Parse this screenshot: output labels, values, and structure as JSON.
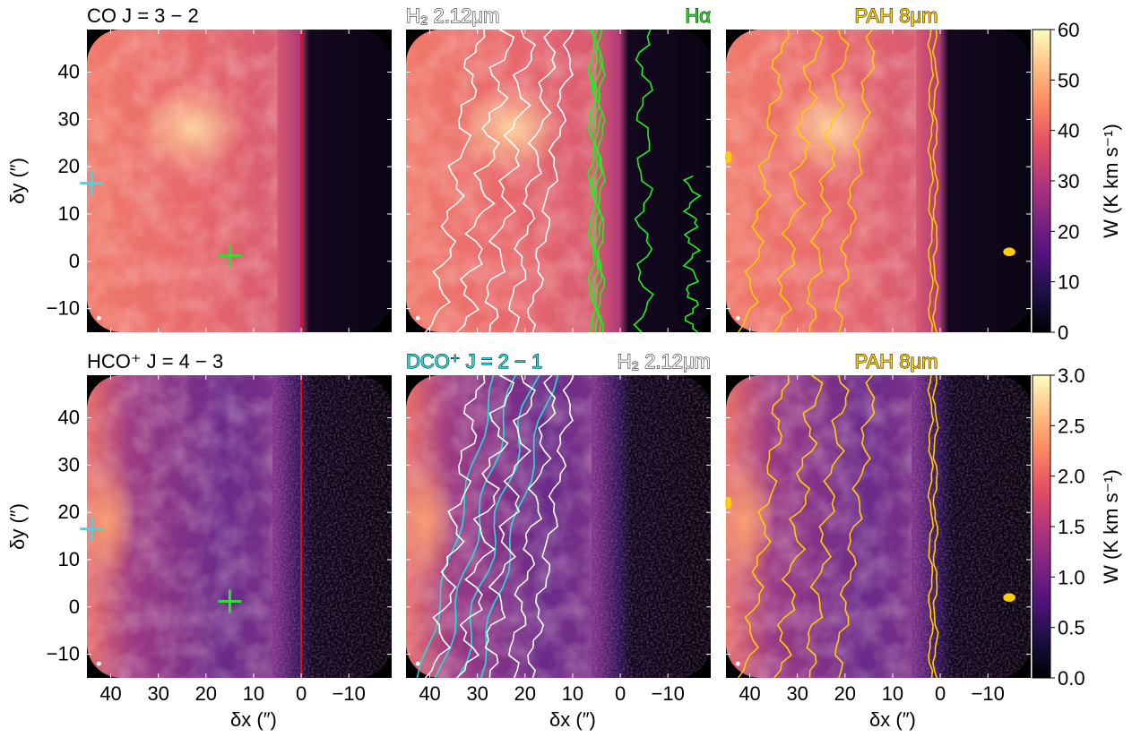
{
  "chart_data": {
    "type": "heatmap",
    "x_range": [
      45,
      -19
    ],
    "y_range": [
      -15,
      49
    ],
    "x_ticks": [
      40,
      30,
      20,
      10,
      0,
      -10
    ],
    "x_tick_labels": [
      "40",
      "30",
      "20",
      "10",
      "0",
      "−10"
    ],
    "y_ticks": [
      40,
      30,
      20,
      10,
      0,
      -10
    ],
    "y_tick_labels": [
      "40",
      "30",
      "20",
      "10",
      "0",
      "−10"
    ],
    "xlabel": "δx (″)",
    "ylabel": "δy (″)",
    "colormap": "magma",
    "grid": false,
    "markers": [
      {
        "color": "#33ddee",
        "x": 44,
        "y": 16.5
      },
      {
        "color": "#33dd33",
        "x": 15,
        "y": 1.2
      }
    ],
    "rows": [
      {
        "colorbar": {
          "label": "W (K km s⁻¹)",
          "range": [
            0,
            60
          ],
          "ticks": [
            "0",
            "10",
            "20",
            "30",
            "40",
            "50",
            "60"
          ]
        },
        "panels": [
          {
            "id": "co",
            "title": "CO J = 3 − 2",
            "title_color": "#000000",
            "right_label": "",
            "right_label_color": "",
            "contours": [
              "red-line"
            ]
          },
          {
            "id": "h2a",
            "title": "H₂ 2.12μm",
            "title_color": "#ffffff",
            "right_label": "Hα",
            "right_label_color": "#22dd22",
            "contours": [
              "h2-white",
              "halpha-green"
            ]
          },
          {
            "id": "paha",
            "title": "PAH 8μm",
            "title_color": "#ffcc00",
            "right_label": "",
            "right_label_color": "",
            "contours": [
              "pah-yellow"
            ]
          }
        ]
      },
      {
        "colorbar": {
          "label": "W (K km s⁻¹)",
          "range": [
            0,
            3
          ],
          "ticks": [
            "0.0",
            "0.5",
            "1.0",
            "1.5",
            "2.0",
            "2.5",
            "3.0"
          ]
        },
        "panels": [
          {
            "id": "hco",
            "title": "HCO⁺ J = 4 − 3",
            "title_color": "#000000",
            "right_label": "",
            "right_label_color": "",
            "contours": [
              "red-line"
            ]
          },
          {
            "id": "dco",
            "title": "DCO⁺ J = 2 − 1",
            "title_color": "#22dddd",
            "right_label": "H₂ 2.12μm",
            "right_label_color": "#ffffff",
            "contours": [
              "dco-cyan",
              "h2-white"
            ]
          },
          {
            "id": "pahb",
            "title": "PAH 8μm",
            "title_color": "#ffcc00",
            "right_label": "",
            "right_label_color": "",
            "contours": [
              "pah-yellow"
            ]
          }
        ]
      }
    ],
    "contour_colors": {
      "red-line": "#dd1111",
      "h2-white": "#ffffff",
      "halpha-green": "#22ee22",
      "dco-cyan": "#22dddd",
      "pah-yellow": "#ffcc00"
    }
  }
}
